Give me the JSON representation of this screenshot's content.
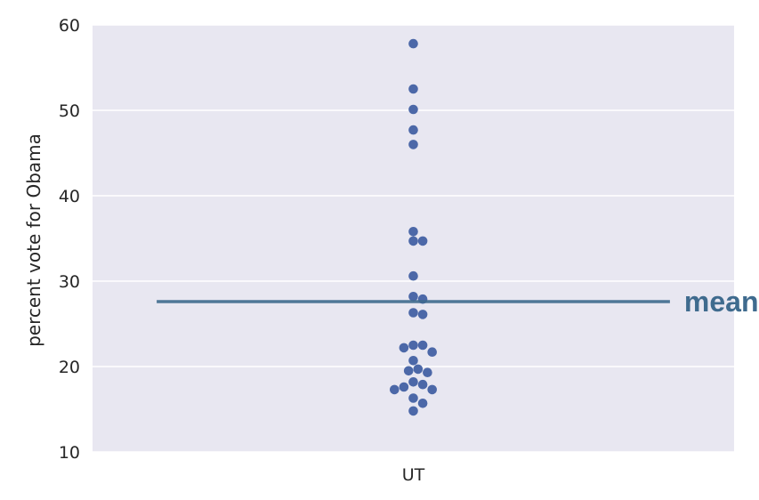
{
  "chart_data": {
    "type": "scatter",
    "subtype": "swarm",
    "title": "",
    "xlabel": "",
    "ylabel": "percent vote for Obama",
    "categories": [
      "UT"
    ],
    "ylim": [
      10,
      60
    ],
    "yticks": [
      "10",
      "20",
      "30",
      "40",
      "50",
      "60"
    ],
    "grid": true,
    "legend": "none",
    "point_color": "#4c68a8",
    "background_color": "#e8e7f1",
    "mean": {
      "value": 27.6,
      "label": "mean",
      "color": "#3f6b8e"
    },
    "series": [
      {
        "category": "UT",
        "values": [
          57.8,
          52.5,
          50.1,
          47.7,
          46.0,
          35.8,
          34.7,
          34.7,
          30.6,
          28.2,
          27.9,
          26.3,
          26.1,
          22.5,
          22.5,
          22.2,
          21.7,
          20.7,
          19.7,
          19.5,
          19.3,
          18.2,
          17.9,
          17.6,
          17.3,
          17.3,
          16.3,
          15.7,
          14.8
        ]
      }
    ]
  }
}
